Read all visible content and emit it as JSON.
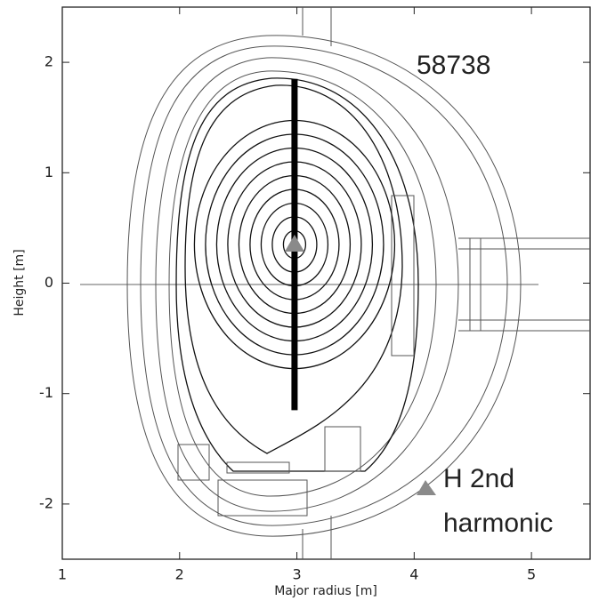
{
  "chart_data": {
    "type": "cross-section",
    "xlabel": "Major radius [m]",
    "ylabel": "Height [m]",
    "xlim": [
      1,
      5.5
    ],
    "ylim": [
      -2.5,
      2.5
    ],
    "xticks": [
      1,
      2,
      3,
      4,
      5
    ],
    "yticks": [
      -2,
      -1,
      0,
      1,
      2
    ],
    "annotation": "58738",
    "legend_text": [
      "H 2nd",
      "harmonic"
    ],
    "chord": {
      "x": [
        2.98,
        2.98
      ],
      "y": [
        -1.15,
        1.85
      ],
      "color": "#000000"
    },
    "axis_marker": {
      "x": 2.98,
      "y": 0.35,
      "color": "#8a8a8a"
    }
  }
}
